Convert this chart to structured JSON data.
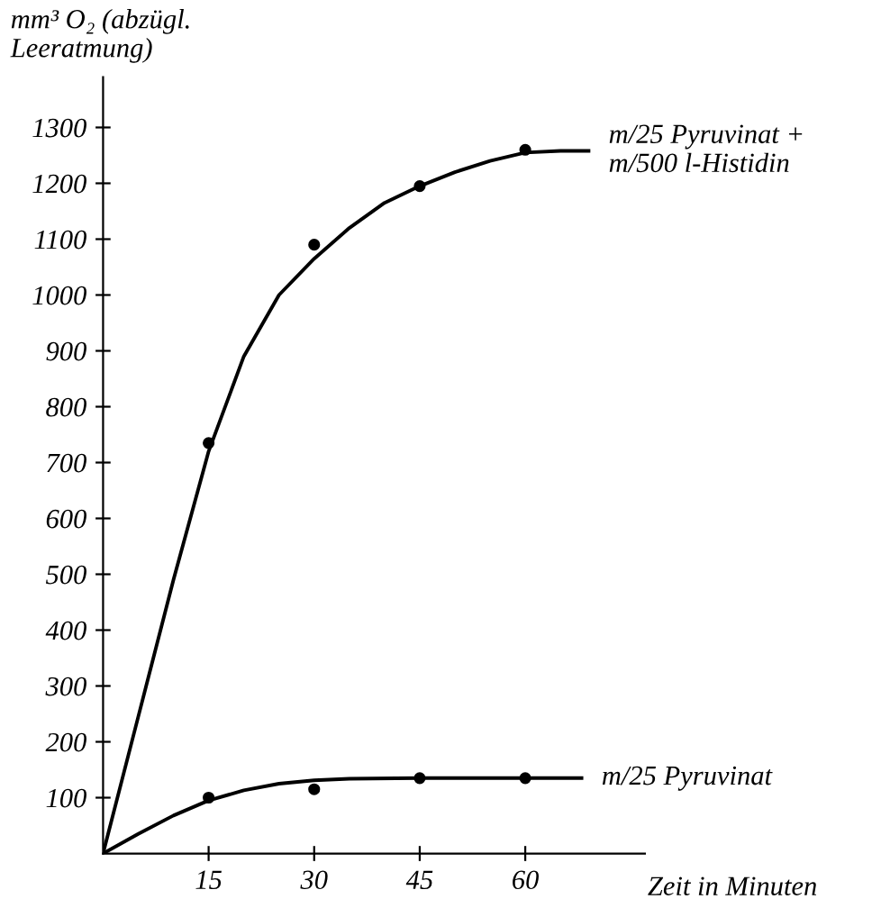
{
  "chart_data": {
    "type": "scatter",
    "ylabel": "mm³ O₂ (abzügl.\nLeeratmung)",
    "xlabel": "Zeit in Minuten",
    "xlim": [
      0,
      77
    ],
    "ylim": [
      0,
      1390
    ],
    "xticks": [
      15,
      30,
      45,
      60
    ],
    "yticks": [
      100,
      200,
      300,
      400,
      500,
      600,
      700,
      800,
      900,
      1000,
      1100,
      1200,
      1300
    ],
    "grid": false,
    "legend": false,
    "series": [
      {
        "marker": "circle",
        "color": "#000000",
        "x": [
          15,
          30,
          45,
          60
        ],
        "values": [
          735,
          1090,
          1195,
          1260
        ]
      },
      {
        "marker": "circle",
        "color": "#000000",
        "x": [
          15,
          30,
          45,
          60
        ],
        "values": [
          100,
          115,
          135,
          135
        ]
      },
      {
        "type": "line",
        "name": "m/25 Pyruvinat +\nm/500 l-Histidin",
        "color": "#000000",
        "marker": "none",
        "x": [
          0,
          5,
          10,
          15,
          20,
          25,
          30,
          35,
          40,
          45,
          50,
          55,
          60,
          65,
          69
        ],
        "values": [
          0,
          245,
          490,
          720,
          890,
          1000,
          1065,
          1120,
          1165,
          1195,
          1220,
          1240,
          1255,
          1258,
          1258
        ]
      },
      {
        "type": "line",
        "name": "m/25 Pyruvinat",
        "color": "#000000",
        "marker": "none",
        "x": [
          0,
          5,
          10,
          15,
          20,
          25,
          30,
          35,
          45,
          60,
          68
        ],
        "values": [
          0,
          35,
          68,
          95,
          113,
          125,
          131,
          134,
          135,
          135,
          135
        ]
      }
    ]
  }
}
